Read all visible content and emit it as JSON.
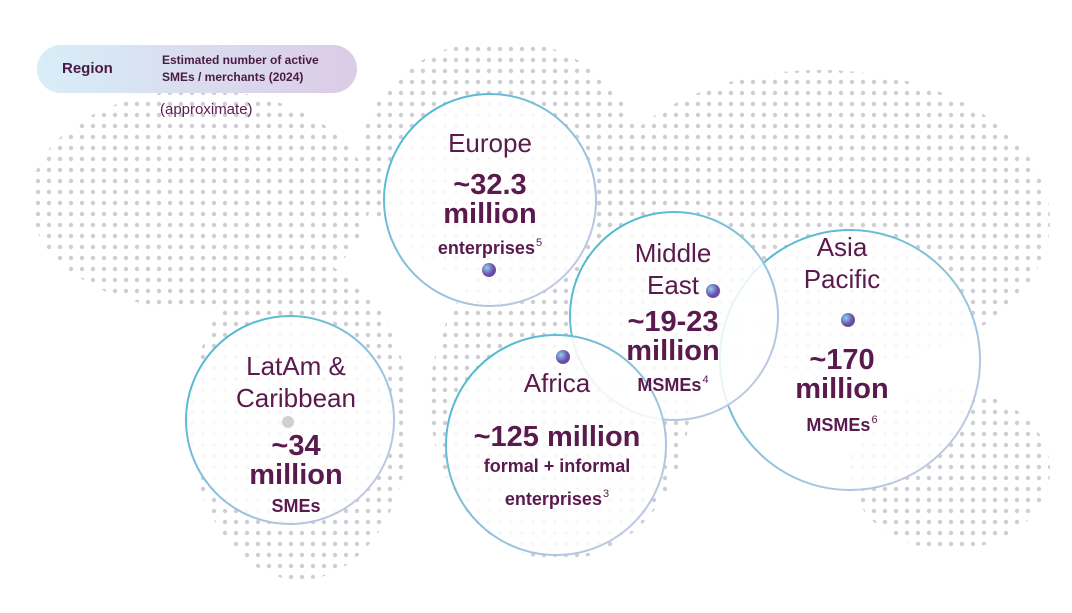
{
  "header": {
    "region_label": "Region",
    "metric_label": "Estimated number of active SMEs / merchants (2024)",
    "note": "(approximate)"
  },
  "regions": [
    {
      "name": "Europe",
      "value": "~32.3 million",
      "unit": "enterprises",
      "footnote": "5"
    },
    {
      "name": "Middle East",
      "value": "~19-23 million",
      "unit": "MSMEs",
      "footnote": "4"
    },
    {
      "name": "Asia Pacific",
      "value": "~170 million",
      "unit": "MSMEs",
      "footnote": "6"
    },
    {
      "name": "LatAm & Caribbean",
      "value": "~34 million",
      "unit": "SMEs"
    },
    {
      "name": "Africa",
      "value": "~125 million",
      "unit": "formal + informal enterprises",
      "footnote": "3"
    }
  ]
}
